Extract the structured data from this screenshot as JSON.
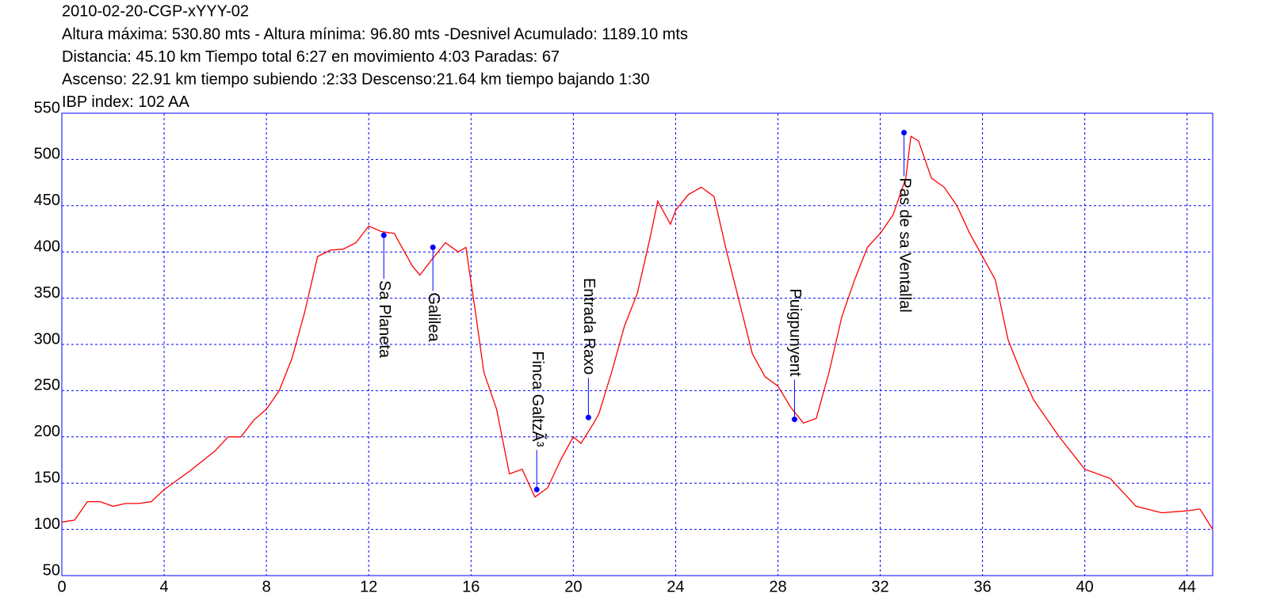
{
  "chart_data": {
    "type": "line",
    "title": "2010-02-20-CGP-xYYY-02",
    "subtitle_lines": [
      "Altura máxima: 530.80 mts - Altura mínima: 96.80 mts -Desnivel Acumulado: 1189.10 mts",
      "Distancia: 45.10 km  Tiempo total 6:27  en movimiento 4:03 Paradas: 67",
      "Ascenso: 22.91 km  tiempo subiendo :2:33  Descenso:21.64 km tiempo bajando 1:30",
      "IBP index: 102 AA"
    ],
    "color": "#ff0000",
    "x": [
      0,
      0.5,
      1,
      1.5,
      2,
      2.5,
      3,
      3.5,
      4,
      5,
      6,
      6.5,
      7,
      7.5,
      8,
      8.5,
      9,
      9.5,
      10,
      10.5,
      11,
      11.5,
      12,
      12.5,
      13,
      13.3,
      13.7,
      14,
      14.5,
      15,
      15.5,
      15.8,
      16.2,
      16.5,
      17,
      17.5,
      18,
      18.5,
      19,
      19.5,
      20,
      20.3,
      20.8,
      21,
      21.5,
      22,
      22.5,
      23,
      23.3,
      23.8,
      24,
      24.5,
      25,
      25.5,
      26,
      26.5,
      27,
      27.5,
      28,
      28.5,
      29,
      29.5,
      30,
      30.5,
      31,
      31.5,
      32,
      32.5,
      33,
      33.2,
      33.5,
      34,
      34.5,
      35,
      35.5,
      36,
      36.5,
      37,
      37.5,
      38,
      39,
      40,
      41,
      42,
      43,
      44,
      44.5,
      45
    ],
    "values": [
      108,
      110,
      130,
      130,
      125,
      128,
      128,
      130,
      143,
      163,
      185,
      200,
      200,
      218,
      230,
      250,
      285,
      335,
      395,
      402,
      403,
      410,
      428,
      422,
      420,
      405,
      385,
      375,
      393,
      410,
      400,
      405,
      330,
      270,
      230,
      160,
      165,
      135,
      145,
      175,
      200,
      193,
      215,
      225,
      270,
      320,
      355,
      415,
      455,
      430,
      445,
      462,
      470,
      460,
      400,
      345,
      290,
      265,
      255,
      232,
      215,
      220,
      270,
      330,
      370,
      405,
      420,
      440,
      480,
      525,
      520,
      480,
      470,
      450,
      420,
      395,
      370,
      305,
      270,
      240,
      200,
      165,
      155,
      125,
      118,
      120,
      122,
      100
    ],
    "waypoints": [
      {
        "name": "Sa Planeta",
        "x": 12.59,
        "y": 418
      },
      {
        "name": "Galilea",
        "x": 14.51,
        "y": 405
      },
      {
        "name": "Finca GaltzÃ³",
        "x": 18.57,
        "y": 143
      },
      {
        "name": "Entrada Raxo",
        "x": 20.59,
        "y": 221
      },
      {
        "name": "Puigpunyent",
        "x": 28.65,
        "y": 219
      },
      {
        "name": "Pas de sa Ventallal",
        "x": 32.93,
        "y": 529
      }
    ],
    "waypoint_color": "#0000ff",
    "xlim": [
      0,
      45
    ],
    "ylim": [
      50,
      550
    ],
    "xticks": [
      0,
      4,
      8,
      12,
      16,
      20,
      24,
      28,
      32,
      36,
      40,
      44
    ],
    "yticks": [
      50,
      100,
      150,
      200,
      250,
      300,
      350,
      400,
      450,
      500,
      550
    ],
    "grid": true
  }
}
